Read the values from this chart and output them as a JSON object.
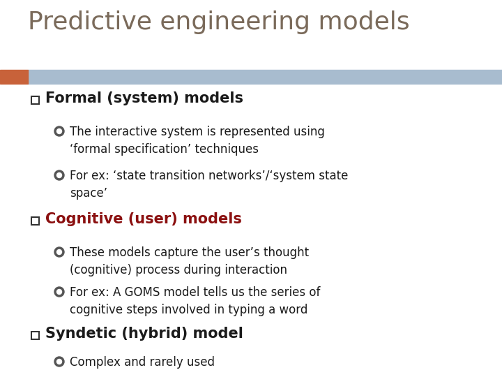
{
  "title": "Predictive engineering models",
  "title_color": "#7a6a5a",
  "title_fontsize": 26,
  "bg_color": "#ffffff",
  "header_bar_color": "#a8bccf",
  "header_bar_accent": "#c8623a",
  "bullet1_text": "Formal (system) models",
  "bullet1_color": "#1a1a1a",
  "bullet1_fontsize": 15,
  "sub1a": "The interactive system is represented using\n‘formal specification’ techniques",
  "sub1b": "For ex: ‘state transition networks’/‘system state\nspace’",
  "bullet2_text": "Cognitive (user) models",
  "bullet2_color": "#8b1010",
  "bullet2_fontsize": 15,
  "sub2a": "These models capture the user’s thought\n(cognitive) process during interaction",
  "sub2b": "For ex: A GOMS model tells us the series of\ncognitive steps involved in typing a word",
  "bullet3_text": "Syndetic (hybrid) model",
  "bullet3_color": "#1a1a1a",
  "bullet3_fontsize": 15,
  "sub3a": "Complex and rarely used",
  "sub_fontsize": 12,
  "sub_color": "#1a1a1a",
  "square_bullet_color": "#333333",
  "circle_bullet_color": "#555555"
}
